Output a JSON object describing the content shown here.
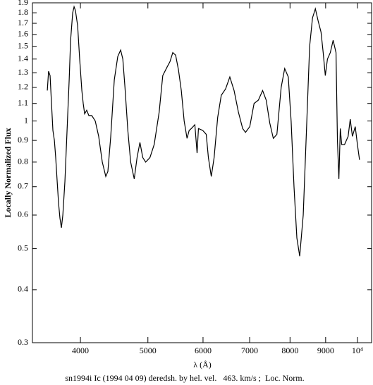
{
  "chart_data": {
    "type": "line",
    "y_label": "Locally Normalized Flux",
    "x_label": "λ (Å)",
    "caption": "sn1994i Ic (1994 04 09) deredsh. by hel. vel.   463. km/s ;  Loc. Norm.",
    "xscale": "log",
    "yscale": "log",
    "xlim": [
      3413,
      10477
    ],
    "ylim": [
      0.3,
      1.9
    ],
    "xticks": [
      4000,
      5000,
      6000,
      7000,
      8000,
      9000,
      {
        "value": 10000,
        "label": "10⁴"
      }
    ],
    "yticks": [
      0.3,
      0.4,
      0.5,
      0.6,
      0.7,
      0.8,
      0.9,
      1,
      1.1,
      1.2,
      1.3,
      1.4,
      1.5,
      1.6,
      1.7,
      1.8,
      1.9
    ],
    "x": [
      3585,
      3600,
      3618,
      3635,
      3652,
      3670,
      3686,
      3704,
      3721,
      3738,
      3756,
      3774,
      3800,
      3827,
      3854,
      3872,
      3899,
      3917,
      3935,
      3963,
      3990,
      4019,
      4037,
      4056,
      4084,
      4113,
      4153,
      4201,
      4249,
      4300,
      4350,
      4380,
      4422,
      4474,
      4526,
      4569,
      4602,
      4635,
      4679,
      4723,
      4779,
      4824,
      4870,
      4916,
      4963,
      5034,
      5105,
      5190,
      5252,
      5327,
      5378,
      5429,
      5480,
      5532,
      5584,
      5637,
      5691,
      5731,
      5772,
      5840,
      5883,
      5910,
      5994,
      6064,
      6107,
      6166,
      6224,
      6298,
      6373,
      6464,
      6556,
      6649,
      6744,
      6840,
      6905,
      7003,
      7103,
      7205,
      7307,
      7394,
      7481,
      7570,
      7660,
      7769,
      7860,
      7954,
      8029,
      8106,
      8183,
      8260,
      8357,
      8457,
      8536,
      8617,
      8699,
      8781,
      8864,
      8927,
      8990,
      9054,
      9140,
      9226,
      9314,
      9358,
      9403,
      9447,
      9491,
      9581,
      9695,
      9763,
      9833,
      9926,
      9997,
      10067
    ],
    "series": [
      {
        "color": "#000000",
        "values": [
          1.18,
          1.31,
          1.28,
          1.1,
          0.95,
          0.9,
          0.82,
          0.72,
          0.64,
          0.59,
          0.56,
          0.6,
          0.72,
          0.95,
          1.25,
          1.55,
          1.8,
          1.86,
          1.82,
          1.68,
          1.4,
          1.18,
          1.1,
          1.04,
          1.06,
          1.03,
          1.03,
          1.0,
          0.92,
          0.8,
          0.74,
          0.76,
          0.92,
          1.25,
          1.42,
          1.47,
          1.4,
          1.2,
          0.95,
          0.8,
          0.73,
          0.82,
          0.89,
          0.82,
          0.8,
          0.82,
          0.88,
          1.05,
          1.28,
          1.34,
          1.38,
          1.45,
          1.43,
          1.32,
          1.18,
          1.0,
          0.91,
          0.95,
          0.96,
          0.98,
          0.84,
          0.96,
          0.95,
          0.93,
          0.82,
          0.74,
          0.82,
          1.02,
          1.15,
          1.19,
          1.27,
          1.18,
          1.05,
          0.96,
          0.94,
          0.97,
          1.1,
          1.12,
          1.18,
          1.12,
          0.99,
          0.91,
          0.93,
          1.2,
          1.33,
          1.27,
          1.0,
          0.7,
          0.53,
          0.48,
          0.6,
          1.0,
          1.5,
          1.75,
          1.84,
          1.72,
          1.62,
          1.45,
          1.28,
          1.4,
          1.45,
          1.55,
          1.45,
          0.9,
          0.73,
          0.96,
          0.88,
          0.88,
          0.92,
          1.01,
          0.92,
          0.97,
          0.88,
          0.81
        ]
      }
    ]
  }
}
